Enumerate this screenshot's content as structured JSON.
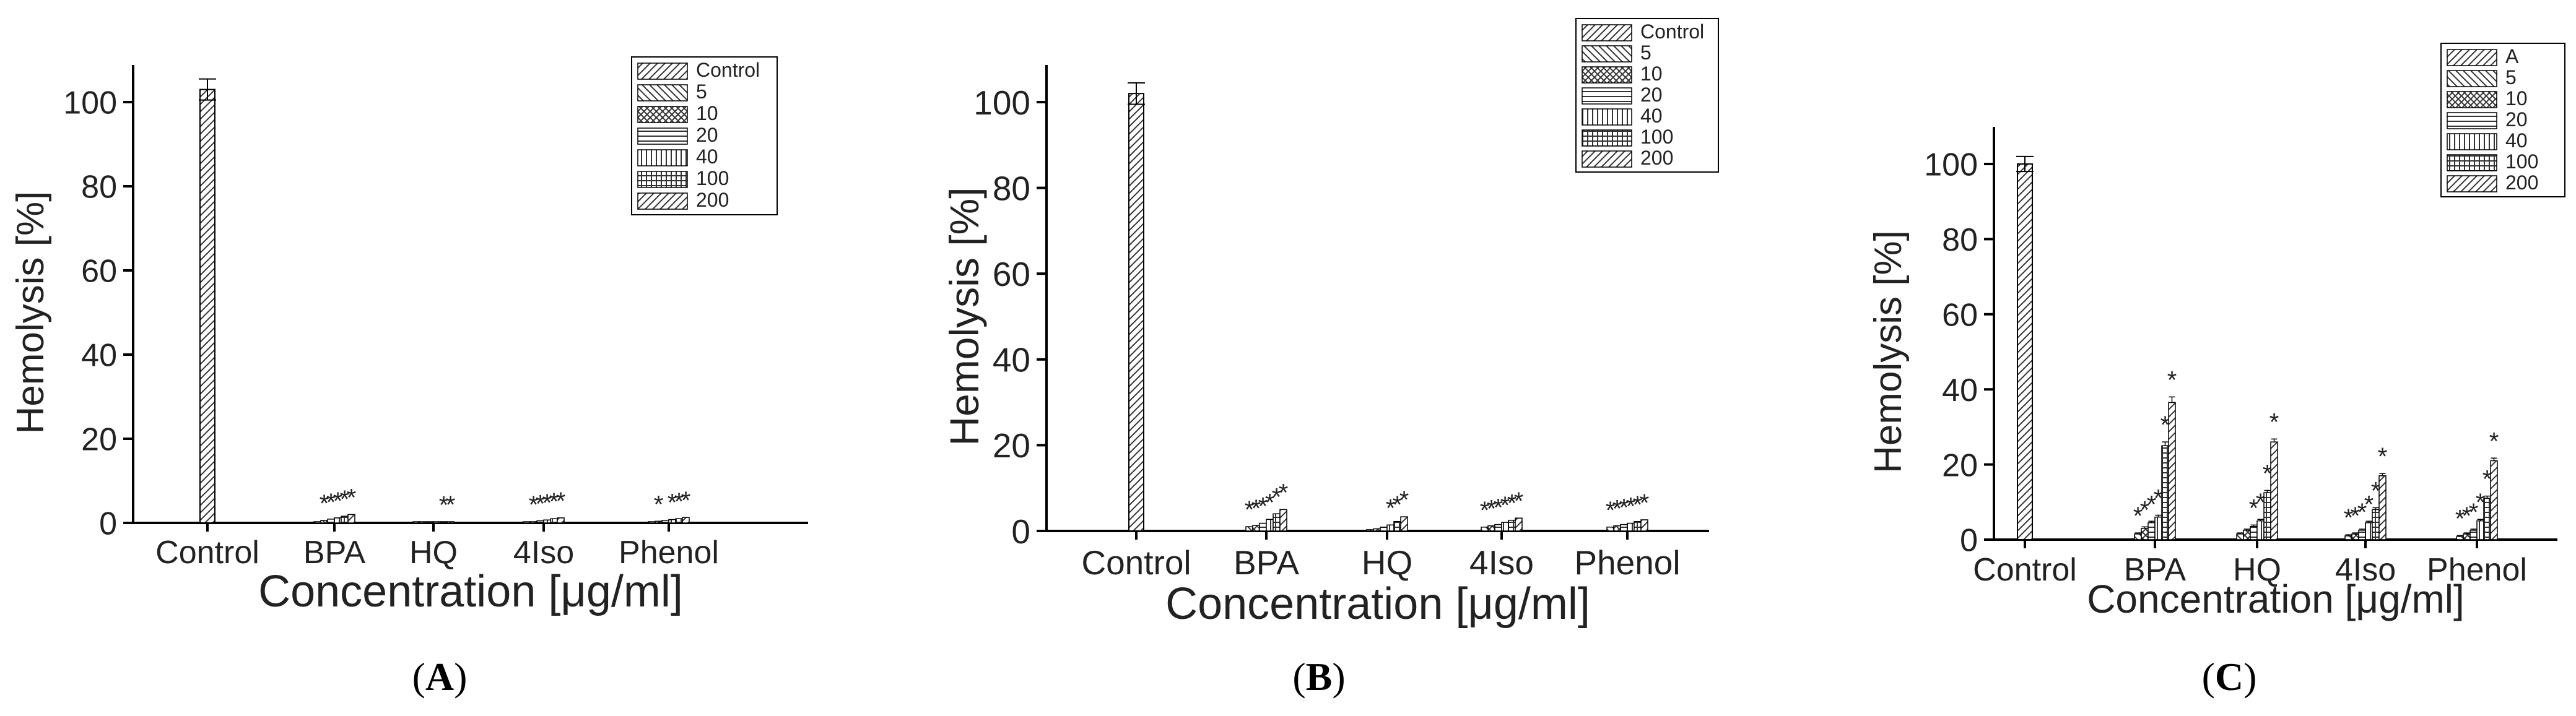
{
  "figure": {
    "panels": [
      {
        "label_open": "(",
        "label_letter": "A",
        "label_close": ")"
      },
      {
        "label_open": "(",
        "label_letter": "B",
        "label_close": ")"
      },
      {
        "label_open": "(",
        "label_letter": "C",
        "label_close": ")"
      }
    ]
  },
  "chart_data": [
    {
      "type": "bar",
      "panel": "A",
      "ylabel": "Hemolysis [%]",
      "xlabel": "Concentration [μg/ml]",
      "ylim": [
        0,
        110
      ],
      "yticks": [
        0,
        20,
        40,
        60,
        80,
        100
      ],
      "categories": [
        "Control",
        "BPA",
        "HQ",
        "4Iso",
        "Phenol"
      ],
      "legend": [
        "Control",
        "5",
        "10",
        "20",
        "40",
        "100",
        "200"
      ],
      "legend_position": "top-right",
      "control": {
        "value": 103,
        "error": 2.5
      },
      "series": [
        {
          "name": "5",
          "values": [
            null,
            0.3,
            0.1,
            0.2,
            0.3
          ]
        },
        {
          "name": "10",
          "values": [
            null,
            0.6,
            0.1,
            0.3,
            0.4
          ]
        },
        {
          "name": "20",
          "values": [
            null,
            0.9,
            0.1,
            0.5,
            0.6
          ]
        },
        {
          "name": "40",
          "values": [
            null,
            1.2,
            0.2,
            0.7,
            0.8
          ]
        },
        {
          "name": "100",
          "values": [
            null,
            1.6,
            0.2,
            1.0,
            1.0
          ]
        },
        {
          "name": "200",
          "values": [
            null,
            2.0,
            0.3,
            1.2,
            1.3
          ]
        }
      ],
      "significance": [
        [
          null,
          "",
          "",
          "",
          ""
        ],
        [
          null,
          "*",
          "",
          "*",
          "*"
        ],
        [
          null,
          "*",
          "",
          "*",
          ""
        ],
        [
          null,
          "*",
          "",
          "*",
          "*"
        ],
        [
          null,
          "*",
          "*",
          "*",
          "*"
        ],
        [
          null,
          "*",
          "*",
          "*",
          "*"
        ]
      ]
    },
    {
      "type": "bar",
      "panel": "B",
      "ylabel": "Hemolysis [%]",
      "xlabel": "Concentration [μg/ml]",
      "ylim": [
        0,
        110
      ],
      "yticks": [
        0,
        20,
        40,
        60,
        80,
        100
      ],
      "categories": [
        "Control",
        "BPA",
        "HQ",
        "4Iso",
        "Phenol"
      ],
      "legend": [
        "Control",
        "5",
        "10",
        "20",
        "40",
        "100",
        "200"
      ],
      "legend_position": "top-right",
      "control": {
        "value": 102,
        "error": 2.5
      },
      "series": [
        {
          "name": "5",
          "values": [
            null,
            1.0,
            0.3,
            0.9,
            0.9
          ]
        },
        {
          "name": "10",
          "values": [
            null,
            1.3,
            0.5,
            1.2,
            1.2
          ]
        },
        {
          "name": "20",
          "values": [
            null,
            1.8,
            0.9,
            1.5,
            1.5
          ]
        },
        {
          "name": "40",
          "values": [
            null,
            2.7,
            1.4,
            2.0,
            1.8
          ]
        },
        {
          "name": "100",
          "values": [
            null,
            4.0,
            2.2,
            2.5,
            2.2
          ]
        },
        {
          "name": "200",
          "values": [
            null,
            5.0,
            3.3,
            3.0,
            2.6
          ]
        }
      ],
      "significance": [
        [
          null,
          "*",
          "",
          "*",
          "*"
        ],
        [
          null,
          "*",
          "",
          "*",
          "*"
        ],
        [
          null,
          "*",
          "",
          "*",
          "*"
        ],
        [
          null,
          "*",
          "*",
          "*",
          "*"
        ],
        [
          null,
          "*",
          "*",
          "*",
          "*"
        ],
        [
          null,
          "*",
          "*",
          "*",
          "*"
        ]
      ]
    },
    {
      "type": "bar",
      "panel": "C",
      "ylabel": "Hemolysis [%]",
      "xlabel": "Concentration [μg/ml]",
      "ylim": [
        0,
        110
      ],
      "yticks": [
        0,
        20,
        40,
        60,
        80,
        100
      ],
      "categories": [
        "Control",
        "BPA",
        "HQ",
        "4Iso",
        "Phenol"
      ],
      "legend": [
        "A",
        "5",
        "10",
        "20",
        "40",
        "100",
        "200"
      ],
      "legend_position": "top-right",
      "control": {
        "value": 100,
        "error": 2.0
      },
      "series": [
        {
          "name": "5",
          "values": [
            null,
            1.5,
            1.5,
            1.0,
            0.8
          ]
        },
        {
          "name": "10",
          "values": [
            null,
            3.0,
            2.5,
            1.5,
            1.5
          ]
        },
        {
          "name": "20",
          "values": [
            null,
            4.5,
            3.5,
            2.5,
            2.5
          ]
        },
        {
          "name": "40",
          "values": [
            null,
            6.0,
            5.0,
            4.5,
            5.0
          ]
        },
        {
          "name": "100",
          "values": [
            null,
            25.0,
            12.5,
            8.0,
            11.0
          ]
        },
        {
          "name": "200",
          "values": [
            null,
            36.5,
            26.0,
            17.0,
            21.0
          ]
        }
      ],
      "errors": [
        [
          null,
          0.3,
          0.3,
          0.3,
          0.3
        ],
        [
          null,
          0.4,
          0.3,
          0.3,
          0.3
        ],
        [
          null,
          0.4,
          0.4,
          0.3,
          0.3
        ],
        [
          null,
          0.5,
          0.4,
          0.4,
          0.4
        ],
        [
          null,
          1.0,
          0.6,
          0.5,
          0.6
        ],
        [
          null,
          1.5,
          0.8,
          0.6,
          0.7
        ]
      ],
      "significance": [
        [
          null,
          "*",
          "",
          "*",
          "*"
        ],
        [
          null,
          "*",
          "",
          "*",
          "*"
        ],
        [
          null,
          "*",
          "*",
          "*",
          "*"
        ],
        [
          null,
          "*",
          "*",
          "*",
          "*"
        ],
        [
          null,
          "*",
          "*",
          "*",
          "*"
        ],
        [
          null,
          "*",
          "*",
          "*",
          "*"
        ]
      ]
    }
  ]
}
